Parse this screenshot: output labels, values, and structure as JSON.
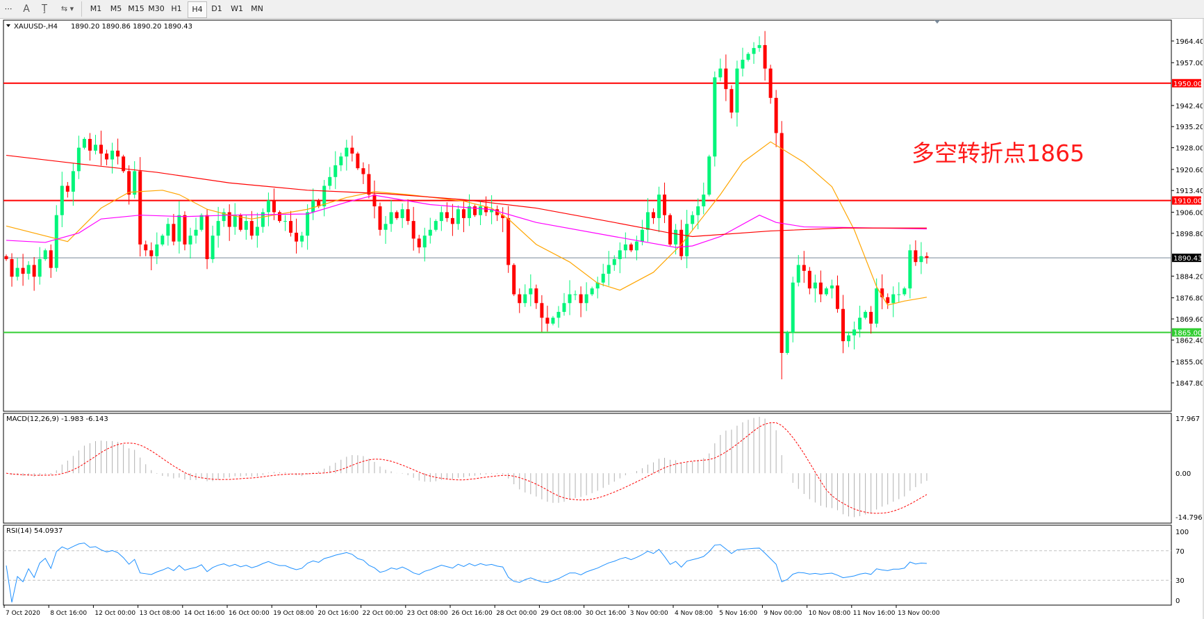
{
  "toolbar": {
    "icons": [
      "grid-icon",
      "text-icon",
      "text-label-icon",
      "arrows-icon"
    ],
    "timeframes": [
      "M1",
      "M5",
      "M15",
      "M30",
      "H1",
      "H4",
      "D1",
      "W1",
      "MN"
    ],
    "active_timeframe": "H4"
  },
  "chart": {
    "title": "XAUUSD-,H4",
    "ohlc": "1890.20 1890.86 1890.20 1890.43",
    "annotation": "多空转折点1865",
    "colors": {
      "bull": "#00f57a",
      "bear": "#ff0000",
      "ma_fast": "#ffa500",
      "ma_mid": "#ff00ff",
      "ma_slow": "#ff0000",
      "level_red": "#ff0000",
      "level_green": "#32cd32",
      "bid_line": "#778899"
    }
  },
  "chart_data": [
    {
      "type": "candlestick",
      "panel": "main",
      "ylim": [
        1847.8,
        1964.4
      ],
      "y_ticks": [
        "1964.40",
        "1957.00",
        "1942.40",
        "1935.20",
        "1928.00",
        "1920.60",
        "1913.40",
        "1906.00",
        "1898.80",
        "1884.20",
        "1876.80",
        "1869.60",
        "1862.40",
        "1855.00",
        "1847.80"
      ],
      "x_ticks": [
        "7 Oct 2020",
        "8 Oct 16:00",
        "12 Oct 00:00",
        "13 Oct 08:00",
        "14 Oct 16:00",
        "16 Oct 00:00",
        "19 Oct 08:00",
        "20 Oct 16:00",
        "22 Oct 00:00",
        "23 Oct 08:00",
        "26 Oct 16:00",
        "28 Oct 00:00",
        "29 Oct 08:00",
        "30 Oct 16:00",
        "3 Nov 00:00",
        "4 Nov 08:00",
        "5 Nov 16:00",
        "9 Nov 00:00",
        "10 Nov 08:00",
        "11 Nov 16:00",
        "13 Nov 00:00"
      ],
      "closes": [
        1890,
        1884,
        1887,
        1885,
        1888,
        1884,
        1890,
        1893,
        1887,
        1905,
        1915,
        1913,
        1920,
        1928,
        1931,
        1927,
        1929,
        1926,
        1924,
        1927,
        1925,
        1920,
        1912,
        1920,
        1895,
        1893,
        1891,
        1895,
        1898,
        1902,
        1896,
        1905,
        1895,
        1898,
        1900,
        1905,
        1890,
        1898,
        1903,
        1906,
        1901,
        1905,
        1900,
        1903,
        1898,
        1901,
        1906,
        1910,
        1906,
        1903,
        1903,
        1899,
        1896,
        1898,
        1906,
        1910,
        1908,
        1915,
        1918,
        1922,
        1925,
        1928,
        1926,
        1921,
        1919,
        1912,
        1908,
        1900,
        1902,
        1906,
        1904,
        1907,
        1903,
        1897,
        1894,
        1898,
        1900,
        1903,
        1906,
        1904,
        1902,
        1907,
        1904,
        1908,
        1905,
        1908,
        1906,
        1907,
        1905,
        1904,
        1888,
        1878,
        1875,
        1878,
        1880,
        1875,
        1870,
        1868,
        1870,
        1872,
        1875,
        1878,
        1878,
        1875,
        1878,
        1880,
        1882,
        1885,
        1888,
        1890,
        1893,
        1895,
        1893,
        1896,
        1900,
        1906,
        1904,
        1912,
        1905,
        1895,
        1900,
        1891,
        1902,
        1905,
        1908,
        1912,
        1925,
        1952,
        1955,
        1948,
        1940,
        1955,
        1958,
        1960,
        1962,
        1963,
        1955,
        1945,
        1933,
        1858,
        1865,
        1882,
        1888,
        1886,
        1880,
        1882,
        1878,
        1880,
        1881,
        1873,
        1862,
        1864,
        1866,
        1870,
        1872,
        1868,
        1880,
        1877,
        1875,
        1878,
        1878,
        1880,
        1893,
        1889,
        1891,
        1890.43
      ],
      "levels": [
        {
          "label": "1950.00",
          "price": 1950,
          "color": "#ff0000"
        },
        {
          "label": "1910.00",
          "price": 1910,
          "color": "#ff0000"
        },
        {
          "label": "1865.00",
          "price": 1865,
          "color": "#32cd32"
        }
      ],
      "bid": {
        "label": "1890.43",
        "price": 1890.43
      },
      "moving_averages": [
        {
          "color": "#ffa500",
          "points": [
            [
              0,
              1901.3
            ],
            [
              11,
              1896
            ],
            [
              17,
              1907.4
            ],
            [
              22,
              1912.8
            ],
            [
              28,
              1913.5
            ],
            [
              31,
              1912
            ],
            [
              36,
              1907
            ],
            [
              40,
              1905
            ],
            [
              44,
              1903.7
            ],
            [
              54,
              1907
            ],
            [
              61,
              1911
            ],
            [
              66,
              1913
            ],
            [
              72,
              1912
            ],
            [
              82,
              1909.8
            ],
            [
              87,
              1907.4
            ],
            [
              90,
              1903.7
            ],
            [
              95,
              1895
            ],
            [
              101,
              1889
            ],
            [
              106,
              1881.8
            ],
            [
              110,
              1879.4
            ],
            [
              116,
              1885.5
            ],
            [
              121,
              1895
            ],
            [
              128,
              1912
            ],
            [
              132,
              1923
            ],
            [
              137,
              1930
            ],
            [
              143,
              1923
            ],
            [
              148,
              1914.7
            ],
            [
              152,
              1900
            ],
            [
              156,
              1880.6
            ],
            [
              158,
              1874.3
            ],
            [
              161,
              1875.7
            ],
            [
              165,
              1877
            ]
          ]
        },
        {
          "color": "#ff00ff",
          "points": [
            [
              0,
              1896.4
            ],
            [
              7,
              1895.7
            ],
            [
              13,
              1898.9
            ],
            [
              17,
              1903.7
            ],
            [
              24,
              1905
            ],
            [
              32,
              1904.5
            ],
            [
              40,
              1905
            ],
            [
              54,
              1905.4
            ],
            [
              61,
              1909.4
            ],
            [
              66,
              1911.8
            ],
            [
              76,
              1908.6
            ],
            [
              87,
              1906.9
            ],
            [
              95,
              1902.5
            ],
            [
              109,
              1897.7
            ],
            [
              120,
              1894
            ],
            [
              123,
              1894.5
            ],
            [
              128,
              1897.7
            ],
            [
              135,
              1905
            ],
            [
              138,
              1902.5
            ],
            [
              143,
              1901
            ],
            [
              150,
              1900.8
            ],
            [
              165,
              1900.3
            ]
          ]
        },
        {
          "color": "#ff0000",
          "points": [
            [
              0,
              1925.4
            ],
            [
              13,
              1922.5
            ],
            [
              27,
              1919.6
            ],
            [
              40,
              1916
            ],
            [
              54,
              1913.5
            ],
            [
              68,
              1912.3
            ],
            [
              82,
              1910.3
            ],
            [
              95,
              1907.4
            ],
            [
              109,
              1902.5
            ],
            [
              119,
              1898.9
            ],
            [
              123,
              1897.7
            ],
            [
              137,
              1899.6
            ],
            [
              150,
              1900.6
            ],
            [
              165,
              1900.6
            ]
          ]
        }
      ]
    },
    {
      "type": "bar",
      "panel": "macd",
      "label": "MACD(12,26,9) -1.983 -6.143",
      "ylim": [
        -14.796,
        17.967
      ],
      "y_ticks": [
        "17.967",
        "0.00",
        "-14.796"
      ]
    },
    {
      "type": "line",
      "panel": "rsi",
      "label": "RSI(14) 54.0937",
      "ylim": [
        0,
        100
      ],
      "y_ticks": [
        "100",
        "70",
        "30",
        "0"
      ],
      "levels": [
        70,
        30
      ],
      "color": "#1e90ff"
    }
  ]
}
